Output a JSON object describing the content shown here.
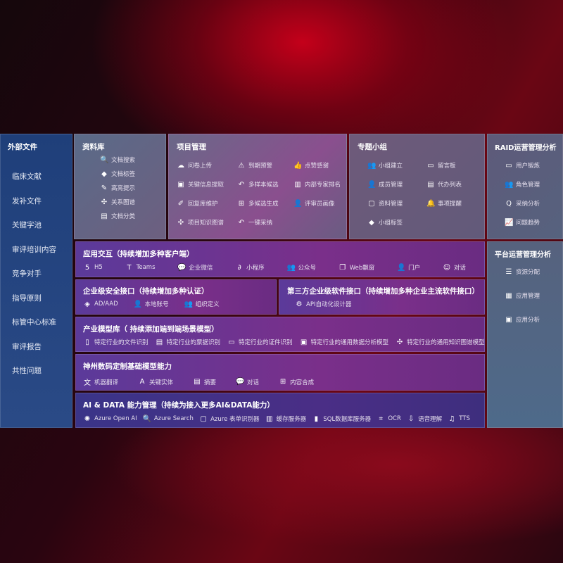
{
  "left": {
    "title": "外部文件",
    "items": [
      "临床文献",
      "发补文件",
      "关键字池",
      "审评培训内容",
      "竞争对手",
      "指导原则",
      "标管中心标准",
      "审评报告",
      "共性问题"
    ]
  },
  "library": {
    "title": "资料库",
    "items": [
      {
        "label": "文档搜索",
        "icon": "doc-search-icon",
        "g": "🔍"
      },
      {
        "label": "文档标签",
        "icon": "tag-icon",
        "g": "◆"
      },
      {
        "label": "高亮提示",
        "icon": "pen-icon",
        "g": "✎"
      },
      {
        "label": "关系图谱",
        "icon": "graph-icon",
        "g": "✣"
      },
      {
        "label": "文档分类",
        "icon": "docs-icon",
        "g": "▤"
      }
    ]
  },
  "project": {
    "title": "项目管理",
    "items": [
      {
        "label": "问卷上传",
        "icon": "cloud-upload-icon",
        "g": "☁"
      },
      {
        "label": "到期预警",
        "icon": "alarm-icon",
        "g": "⚠"
      },
      {
        "label": "点赞感谢",
        "icon": "thumbs-up-icon",
        "g": "👍"
      },
      {
        "label": "关键信息提取",
        "icon": "window-icon",
        "g": "▣"
      },
      {
        "label": "多样本候选",
        "icon": "reply-icon",
        "g": "↶"
      },
      {
        "label": "内部专家排名",
        "icon": "ranking-icon",
        "g": "▥"
      },
      {
        "label": "回复库维护",
        "icon": "edit-icon",
        "g": "✐"
      },
      {
        "label": "多候选生成",
        "icon": "puzzle-icon",
        "g": "⊞"
      },
      {
        "label": "评审员画像",
        "icon": "user-icon",
        "g": "👤"
      },
      {
        "label": "项目知识图谱",
        "icon": "graph-icon",
        "g": "✣"
      },
      {
        "label": "一键采纳",
        "icon": "reply-icon",
        "g": "↶"
      }
    ]
  },
  "group": {
    "title": "专题小组",
    "items": [
      {
        "label": "小组建立",
        "icon": "group-icon",
        "g": "👥"
      },
      {
        "label": "留言板",
        "icon": "bbs-icon",
        "g": "▭"
      },
      {
        "label": "成员管理",
        "icon": "user-add-icon",
        "g": "👤"
      },
      {
        "label": "代办列表",
        "icon": "clipboard-icon",
        "g": "▤"
      },
      {
        "label": "资料管理",
        "icon": "folder-icon",
        "g": "▢"
      },
      {
        "label": "事项提醒",
        "icon": "bell-icon",
        "g": "🔔"
      },
      {
        "label": "小组标签",
        "icon": "tag-icon",
        "g": "◆"
      }
    ]
  },
  "raid": {
    "title": "RAID运营管理分析",
    "items": [
      {
        "label": "用户锻炼",
        "icon": "id-card-icon",
        "g": "▭"
      },
      {
        "label": "角色管理",
        "icon": "users-icon",
        "g": "👥"
      },
      {
        "label": "采纳分析",
        "icon": "qa-icon",
        "g": "Q"
      },
      {
        "label": "问题趋势",
        "icon": "chart-icon",
        "g": "📈"
      }
    ]
  },
  "platform": {
    "title": "平台运营管理分析",
    "items": [
      {
        "label": "资源分配",
        "icon": "list-icon",
        "g": "☰"
      },
      {
        "label": "应用管理",
        "icon": "apps-icon",
        "g": "▦"
      },
      {
        "label": "应用分析",
        "icon": "analysis-icon",
        "g": "▣"
      }
    ]
  },
  "apps": {
    "title": "应用交互（持续增加多种客户端）",
    "items": [
      {
        "label": "H5",
        "icon": "html5-icon",
        "g": "5"
      },
      {
        "label": "Teams",
        "icon": "teams-icon",
        "g": "T"
      },
      {
        "label": "企业微信",
        "icon": "wechat-icon",
        "g": "💬"
      },
      {
        "label": "小程序",
        "icon": "miniprogram-icon",
        "g": "∂"
      },
      {
        "label": "公众号",
        "icon": "people-icon",
        "g": "👥"
      },
      {
        "label": "Web飘窗",
        "icon": "window-icon",
        "g": "❐"
      },
      {
        "label": "门户",
        "icon": "portal-icon",
        "g": "👤"
      },
      {
        "label": "对话",
        "icon": "chat-icon",
        "g": "☺"
      }
    ]
  },
  "security": {
    "title": "企业级安全接口（持续增加多种认证）",
    "items": [
      {
        "label": "AD/AAD",
        "icon": "ad-icon",
        "g": "◈"
      },
      {
        "label": "本地账号",
        "icon": "account-icon",
        "g": "👤"
      },
      {
        "label": "组织定义",
        "icon": "org-icon",
        "g": "👥"
      }
    ]
  },
  "thirdparty": {
    "title": "第三方企业级软件接口（持续增加多种企业主流软件接口）",
    "items": [
      {
        "label": "API自动化设计器",
        "icon": "gear-icon",
        "g": "⚙"
      }
    ]
  },
  "models": {
    "title": "产业模型库（ 持续添加端到端场景模型）",
    "items": [
      {
        "label": "特定行业的文件识别",
        "icon": "file-icon",
        "g": "▯"
      },
      {
        "label": "特定行业的票据识别",
        "icon": "receipt-icon",
        "g": "▤"
      },
      {
        "label": "特定行业的证件识别",
        "icon": "id-card-icon",
        "g": "▭"
      },
      {
        "label": "特定行业的通用数据分析模型",
        "icon": "data-icon",
        "g": "▣"
      },
      {
        "label": "特定行业的通用知识图谱模型",
        "icon": "graph-icon",
        "g": "✣"
      }
    ]
  },
  "base": {
    "title": "神州数码定制基础模型能力",
    "items": [
      {
        "label": "机器翻译",
        "icon": "translate-icon",
        "g": "文"
      },
      {
        "label": "关键实体",
        "icon": "entity-icon",
        "g": "A"
      },
      {
        "label": "摘要",
        "icon": "summary-icon",
        "g": "▤"
      },
      {
        "label": "对话",
        "icon": "chat-icon",
        "g": "💬"
      },
      {
        "label": "内容合成",
        "icon": "puzzle-icon",
        "g": "⊞"
      }
    ]
  },
  "ai": {
    "title": "AI & DATA 能力管理（持续为接入更多AI&DATA能力）",
    "items": [
      {
        "label": "Azure Open AI",
        "icon": "openai-icon",
        "g": "✺"
      },
      {
        "label": "Azure Search",
        "icon": "search-icon",
        "g": "🔍"
      },
      {
        "label": "Azure 表单识别器",
        "icon": "form-icon",
        "g": "▢"
      },
      {
        "label": "缓存服务器",
        "icon": "cache-icon",
        "g": "▥"
      },
      {
        "label": "SQL数据库服务器",
        "icon": "database-icon",
        "g": "▮"
      },
      {
        "label": "OCR",
        "icon": "ocr-icon",
        "g": "⌗"
      },
      {
        "label": "语音理解",
        "icon": "speech-icon",
        "g": "⇩"
      },
      {
        "label": "TTS",
        "icon": "tts-icon",
        "g": "♫"
      }
    ]
  }
}
